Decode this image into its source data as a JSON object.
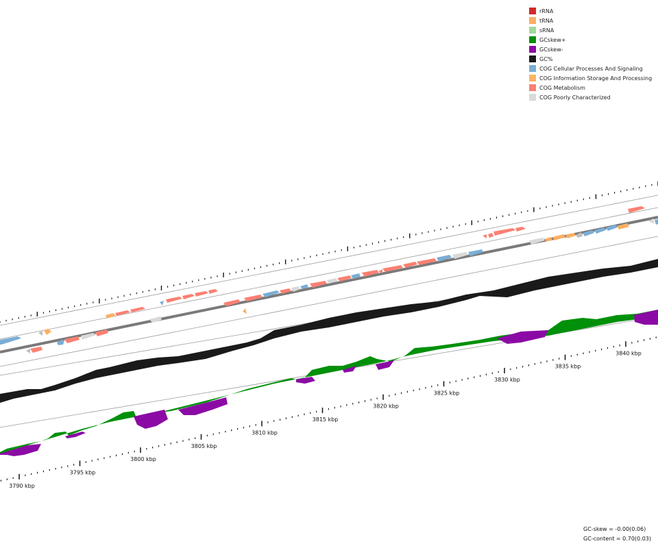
{
  "legend": [
    {
      "label": "rRNA",
      "color": "#d62728"
    },
    {
      "label": "tRNA",
      "color": "#fdae61"
    },
    {
      "label": "sRNA",
      "color": "#a1d99b"
    },
    {
      "label": "GCskew+",
      "color": "#00900a"
    },
    {
      "label": "GCskew-",
      "color": "#8b0aa5"
    },
    {
      "label": "GC%",
      "color": "#1a1a1a"
    },
    {
      "label": "COG Cellular Processes And Signaling",
      "color": "#7aaed6"
    },
    {
      "label": "COG Information Storage And Processing",
      "color": "#fdb462"
    },
    {
      "label": "COG Metabolism",
      "color": "#fb8072"
    },
    {
      "label": "COG Poorly Characterized",
      "color": "#d9d9d9"
    }
  ],
  "scale": {
    "unit": "kbp",
    "ticks": [
      "3790 kbp",
      "3795 kbp",
      "3800 kbp",
      "3805 kbp",
      "3810 kbp",
      "3815 kbp",
      "3820 kbp",
      "3825 kbp",
      "3830 kbp",
      "3835 kbp",
      "3840 kbp"
    ]
  },
  "stats": {
    "gc_skew": "GC-skew = -0.00(0.06)",
    "gc_content": "GC-content = 0.70(0.03)"
  }
}
